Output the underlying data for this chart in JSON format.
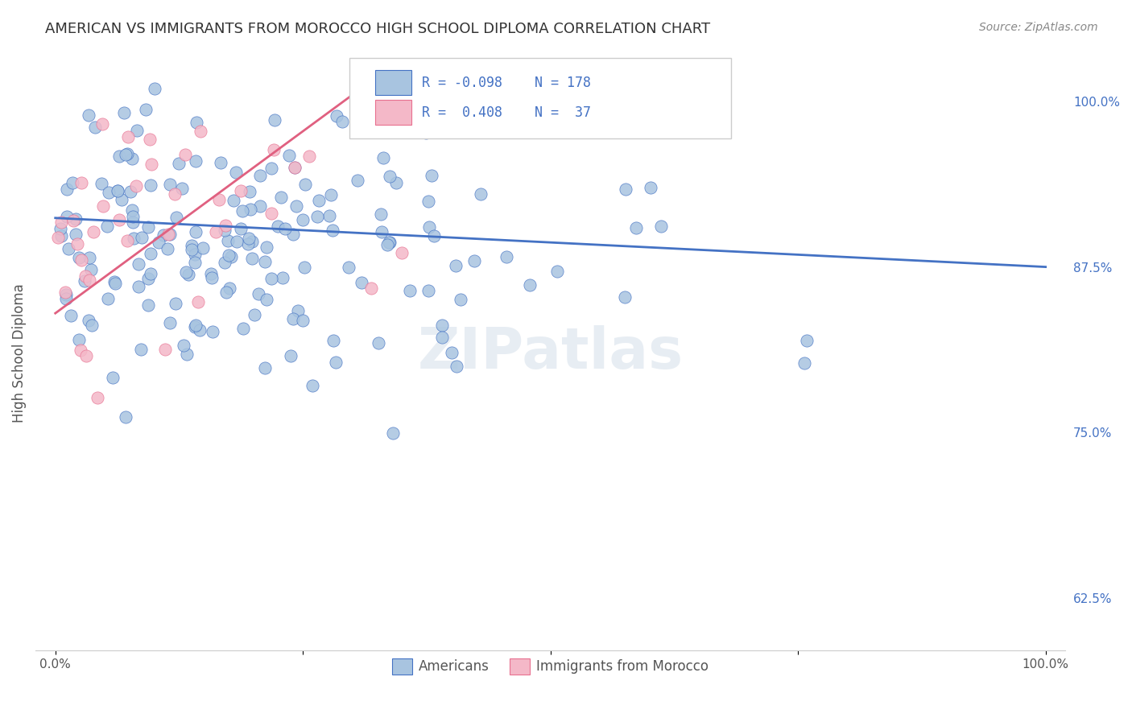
{
  "title": "AMERICAN VS IMMIGRANTS FROM MOROCCO HIGH SCHOOL DIPLOMA CORRELATION CHART",
  "source": "Source: ZipAtlas.com",
  "ylabel": "High School Diploma",
  "right_yticks": [
    "62.5%",
    "75.0%",
    "87.5%",
    "100.0%"
  ],
  "right_ytick_values": [
    0.625,
    0.75,
    0.875,
    1.0
  ],
  "legend_label1": "Americans",
  "legend_label2": "Immigrants from Morocco",
  "R1": "-0.098",
  "N1": "178",
  "R2": "0.408",
  "N2": "37",
  "color_blue": "#a8c4e0",
  "color_pink": "#f4b8c8",
  "color_blue_dark": "#4472c4",
  "color_pink_dark": "#e87090",
  "trendline_blue": "#4472c4",
  "trendline_pink": "#e06080",
  "watermark_color": "#d0dce8",
  "background_color": "#ffffff",
  "grid_color": "#dddddd",
  "title_color": "#333333",
  "right_axis_color": "#4472c4",
  "seed": 42
}
